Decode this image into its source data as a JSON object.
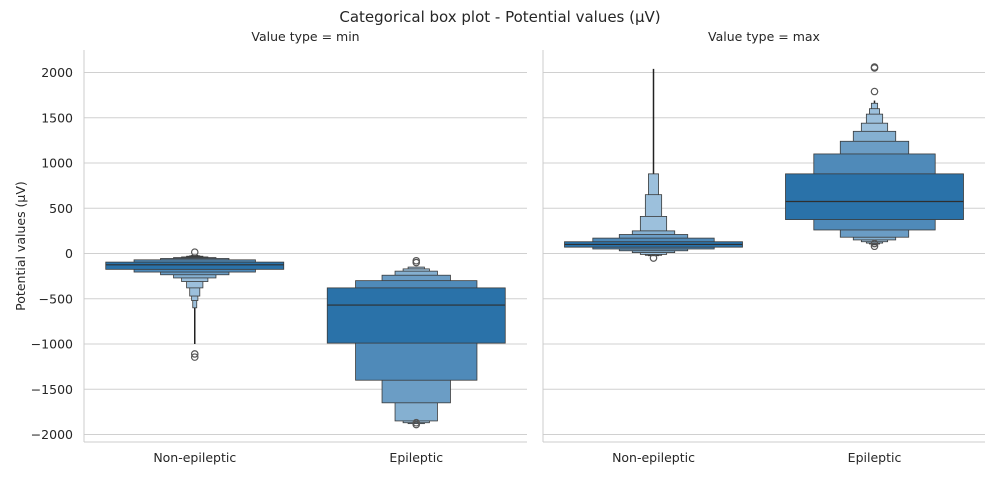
{
  "chart_data": {
    "type": "boxen",
    "title": "Categorical box plot - Potential values (µV)",
    "ylabel": "Potential values (µV)",
    "xlabel": "",
    "ylim": [
      -2100,
      2250
    ],
    "yticks": [
      2000,
      1500,
      1000,
      500,
      0,
      -500,
      -1000,
      -1500,
      -2000
    ],
    "grid": "horizontal",
    "colors": {
      "level0": "#2a72a9",
      "level1": "#4f8ab9",
      "level2": "#6b9dc5",
      "level3": "#85b0d1",
      "level4": "#9cc0dc",
      "edge": "#3a3a3a",
      "median": "#2f2f2f",
      "grid": "#d0d0d0",
      "axis": "#cccccc"
    },
    "panels": [
      {
        "title": "Value type = min",
        "categories": [
          {
            "label": "Non-epileptic",
            "median": -125,
            "boxes": [
              [
                -175,
                -95
              ],
              [
                -205,
                -70
              ],
              [
                -235,
                -55
              ],
              [
                -270,
                -45
              ],
              [
                -310,
                -38
              ],
              [
                -380,
                -30
              ],
              [
                -470,
                -25
              ],
              [
                -520,
                -20
              ],
              [
                -600,
                -15
              ]
            ],
            "line": [
              -1000,
              -520
            ],
            "outliers": [
              -1145,
              -1110,
              15
            ]
          },
          {
            "label": "Epileptic",
            "median": -570,
            "boxes": [
              [
                -990,
                -380
              ],
              [
                -1400,
                -300
              ],
              [
                -1650,
                -240
              ],
              [
                -1850,
                -195
              ],
              [
                -1870,
                -170
              ],
              [
                -1880,
                -150
              ]
            ],
            "line": null,
            "outliers": [
              -1890,
              -1870,
              -100,
              -80
            ]
          }
        ]
      },
      {
        "title": "Value type = max",
        "categories": [
          {
            "label": "Non-epileptic",
            "median": 100,
            "boxes": [
              [
                70,
                130
              ],
              [
                50,
                170
              ],
              [
                30,
                210
              ],
              [
                10,
                250
              ],
              [
                -10,
                410
              ],
              [
                -20,
                650
              ],
              [
                -25,
                880
              ]
            ],
            "line": [
              880,
              2040
            ],
            "outliers": [
              -50
            ]
          },
          {
            "label": "Epileptic",
            "median": 575,
            "boxes": [
              [
                375,
                880
              ],
              [
                260,
                1100
              ],
              [
                180,
                1240
              ],
              [
                150,
                1350
              ],
              [
                130,
                1440
              ],
              [
                115,
                1540
              ],
              [
                105,
                1600
              ],
              [
                95,
                1660
              ]
            ],
            "line": [
              1660,
              1690
            ],
            "outliers": [
              80,
              110,
              1790,
              2050,
              2060
            ]
          }
        ]
      }
    ]
  }
}
